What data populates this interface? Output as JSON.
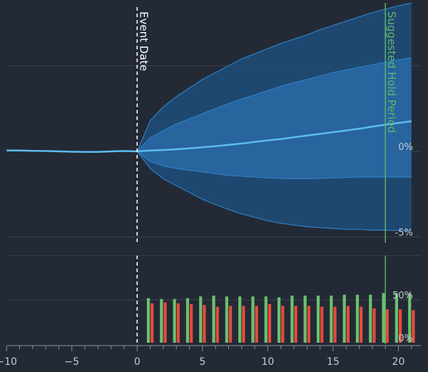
{
  "chart_data": [
    {
      "type": "area",
      "panel": "projection",
      "annotations": {
        "event_label": "Event Date",
        "event_x": 0,
        "hold_label": "Suggested Hold Period",
        "hold_x": 19
      },
      "yticks": [
        {
          "value": 0,
          "label": "0%"
        },
        {
          "value": -5,
          "label": "-5%"
        }
      ],
      "ylim": [
        -5.5,
        8
      ],
      "x": [
        -10,
        -9,
        -8,
        -7,
        -6,
        -5,
        -4,
        -3,
        -2,
        -1,
        0,
        1,
        2,
        3,
        4,
        5,
        6,
        7,
        8,
        9,
        10,
        11,
        12,
        13,
        14,
        15,
        16,
        17,
        18,
        19,
        20,
        21
      ],
      "series": [
        {
          "role": "median",
          "values": [
            0.05,
            0.05,
            0.03,
            0.02,
            0.0,
            -0.02,
            -0.03,
            -0.03,
            0.0,
            0.02,
            0.0,
            0.05,
            0.08,
            0.12,
            0.18,
            0.24,
            0.3,
            0.38,
            0.46,
            0.55,
            0.64,
            0.72,
            0.82,
            0.92,
            1.02,
            1.12,
            1.22,
            1.32,
            1.44,
            1.56,
            1.66,
            1.76
          ]
        },
        {
          "role": "inner_upper",
          "values": [
            null,
            null,
            null,
            null,
            null,
            null,
            null,
            null,
            null,
            null,
            0.0,
            0.8,
            1.2,
            1.6,
            1.9,
            2.2,
            2.5,
            2.8,
            3.05,
            3.3,
            3.55,
            3.8,
            4.0,
            4.2,
            4.4,
            4.6,
            4.75,
            4.9,
            5.05,
            5.2,
            5.35,
            5.45
          ]
        },
        {
          "role": "inner_lower",
          "values": [
            null,
            null,
            null,
            null,
            null,
            null,
            null,
            null,
            null,
            null,
            0.0,
            -0.6,
            -0.85,
            -1.0,
            -1.1,
            -1.2,
            -1.3,
            -1.4,
            -1.45,
            -1.5,
            -1.55,
            -1.58,
            -1.6,
            -1.6,
            -1.58,
            -1.55,
            -1.52,
            -1.5,
            -1.5,
            -1.5,
            -1.5,
            -1.5
          ]
        },
        {
          "role": "outer_upper",
          "values": [
            null,
            null,
            null,
            null,
            null,
            null,
            null,
            null,
            null,
            null,
            0.0,
            1.8,
            2.6,
            3.2,
            3.7,
            4.2,
            4.6,
            5.0,
            5.4,
            5.7,
            6.0,
            6.3,
            6.55,
            6.8,
            7.1,
            7.35,
            7.6,
            7.85,
            8.1,
            8.3,
            8.5,
            8.65
          ]
        },
        {
          "role": "outer_lower",
          "values": [
            null,
            null,
            null,
            null,
            null,
            null,
            null,
            null,
            null,
            null,
            0.0,
            -1.0,
            -1.6,
            -2.0,
            -2.4,
            -2.8,
            -3.1,
            -3.4,
            -3.65,
            -3.85,
            -4.05,
            -4.2,
            -4.3,
            -4.4,
            -4.45,
            -4.5,
            -4.55,
            -4.55,
            -4.6,
            -4.6,
            -4.62,
            -4.62
          ]
        }
      ],
      "colors": {
        "band_outer": "#1f4e7a",
        "band_inner": "#2a6aa6",
        "median": "#5bbcf2",
        "edge": "#2e7fc4"
      }
    },
    {
      "type": "bar",
      "panel": "win_rate",
      "x": [
        1,
        2,
        3,
        4,
        5,
        6,
        7,
        8,
        9,
        10,
        11,
        12,
        13,
        14,
        15,
        16,
        17,
        18,
        19,
        20,
        21
      ],
      "series": [
        {
          "color": "#6cc070",
          "values": [
            52,
            51,
            51,
            52,
            54,
            55,
            54,
            54,
            54,
            54,
            53,
            55,
            55,
            55,
            55,
            56,
            56,
            56,
            58,
            58,
            58
          ]
        },
        {
          "color": "#e84a3a",
          "values": [
            46,
            47,
            46,
            45,
            44,
            42,
            43,
            43,
            43,
            45,
            43,
            43,
            43,
            42,
            42,
            43,
            42,
            40,
            39,
            39,
            38
          ]
        }
      ],
      "yticks": [
        {
          "value": 50,
          "label": "50%"
        },
        {
          "value": 0,
          "label": "0%"
        }
      ],
      "ylim": [
        0,
        100
      ]
    }
  ],
  "x_axis": {
    "range": [
      -10.5,
      21.5
    ],
    "ticks": [
      {
        "value": -10,
        "label": "−10"
      },
      {
        "value": -5,
        "label": "−5"
      },
      {
        "value": 0,
        "label": "0"
      },
      {
        "value": 5,
        "label": "5"
      },
      {
        "value": 10,
        "label": "10"
      },
      {
        "value": 15,
        "label": "15"
      },
      {
        "value": 20,
        "label": "20"
      }
    ]
  }
}
